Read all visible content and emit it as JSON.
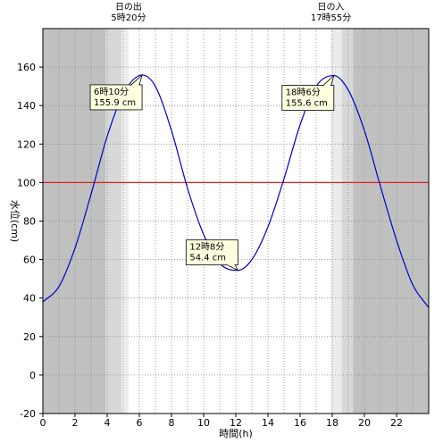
{
  "chart_data": {
    "type": "line",
    "xlabel": "時間(h)",
    "ylabel": "水位(cm)",
    "xlim": [
      0,
      24
    ],
    "ylim": [
      -20,
      180
    ],
    "xticks": [
      0,
      2,
      4,
      6,
      8,
      10,
      12,
      14,
      16,
      18,
      20,
      22
    ],
    "yticks": [
      -20,
      0,
      20,
      40,
      60,
      80,
      100,
      120,
      140,
      160
    ],
    "grid": true,
    "reference_line": {
      "y": 100,
      "color": "#dd2222"
    },
    "line_color": "#0000cc",
    "daylight_shading": {
      "night_color": "#c0c0c0",
      "twilight_color": "#d8d8d8",
      "dawn_color": "#ececec",
      "day_color": "#ffffff",
      "night_end": 3.9,
      "twilight_end": 4.9,
      "dawn_end": 5.33,
      "dusk_start": 17.92,
      "twilight2_start": 18.6,
      "night_start": 19.3
    },
    "sun_events": [
      {
        "name": "日の出",
        "time": "5時20分",
        "hour": 5.33
      },
      {
        "name": "日の入",
        "time": "17時55分",
        "hour": 17.92
      }
    ],
    "extremes": [
      {
        "time": "6時10分",
        "level": "155.9 cm",
        "hour": 6.17,
        "value": 155.9,
        "type": "high"
      },
      {
        "time": "12時8分",
        "level": "54.4 cm",
        "hour": 12.13,
        "value": 54.4,
        "type": "low"
      },
      {
        "time": "18時6分",
        "level": "155.6 cm",
        "hour": 18.1,
        "value": 155.6,
        "type": "high"
      }
    ],
    "series": [
      {
        "x": [
          0,
          1,
          2,
          3,
          4,
          5,
          6.17,
          7,
          8,
          9,
          10,
          11,
          12.13,
          13,
          14,
          15,
          16,
          17,
          18.1,
          19,
          20,
          21,
          22,
          23,
          24
        ],
        "y": [
          38,
          46,
          66,
          94,
          124,
          146,
          155.9,
          150,
          127,
          97,
          73,
          58,
          54.4,
          60,
          77,
          102,
          130,
          150,
          155.6,
          148,
          127,
          98,
          70,
          47,
          35
        ]
      }
    ]
  }
}
